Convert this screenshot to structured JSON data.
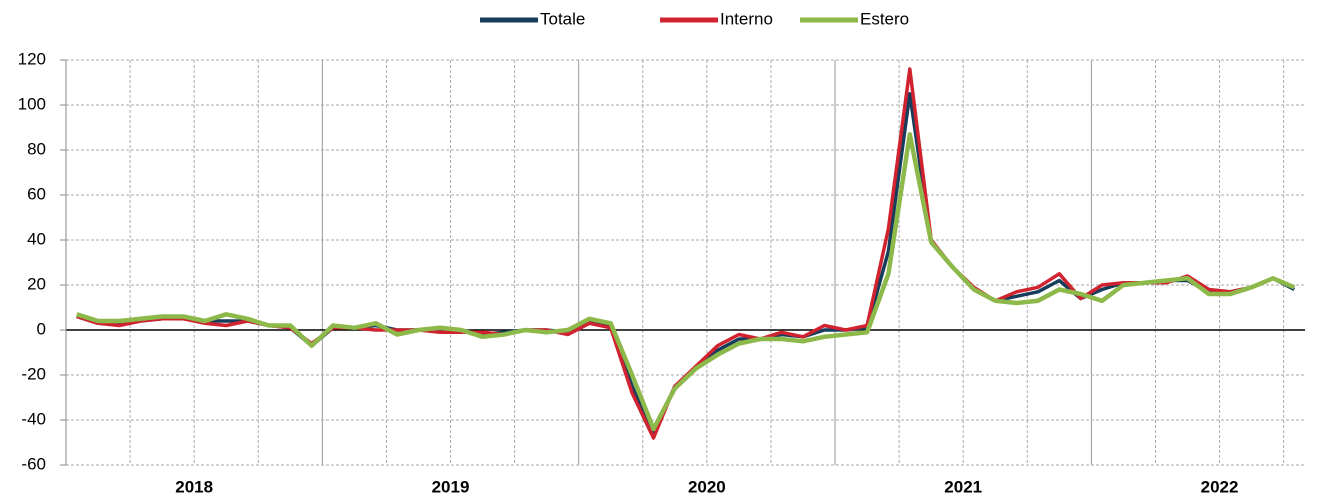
{
  "chart_data": {
    "type": "line",
    "categories": [
      null,
      null,
      null,
      null,
      null,
      null,
      "2018",
      null,
      null,
      null,
      null,
      null,
      null,
      null,
      null,
      null,
      null,
      null,
      "2019",
      null,
      null,
      null,
      null,
      null,
      null,
      null,
      null,
      null,
      null,
      null,
      "2020",
      null,
      null,
      null,
      null,
      null,
      null,
      null,
      null,
      null,
      null,
      null,
      "2021",
      null,
      null,
      null,
      null,
      null,
      null,
      null,
      null,
      null,
      null,
      null,
      "2022",
      null,
      null,
      null
    ],
    "series": [
      {
        "name": "Totale",
        "color": "#163d5c",
        "values": [
          6,
          3,
          3,
          4,
          5,
          5,
          4,
          4,
          4,
          2,
          1,
          -7,
          1,
          1,
          2,
          0,
          0,
          0,
          0,
          -2,
          -1,
          0,
          0,
          -1,
          4,
          2,
          -25,
          -46,
          -25,
          -17,
          -9,
          -4,
          -4,
          -2,
          -3,
          0,
          0,
          1,
          35,
          105,
          39,
          28,
          18,
          13,
          15,
          17,
          22,
          14,
          18,
          21,
          21,
          22,
          22,
          17,
          17,
          19,
          23,
          18
        ]
      },
      {
        "name": "Interno",
        "color": "#d0232f",
        "values": [
          6,
          3,
          2,
          4,
          5,
          5,
          3,
          2,
          4,
          2,
          1,
          -6,
          1,
          1,
          0,
          0,
          0,
          -1,
          -1,
          -1,
          -2,
          0,
          0,
          -2,
          3,
          1,
          -28,
          -48,
          -25,
          -16,
          -7,
          -2,
          -4,
          -1,
          -3,
          2,
          0,
          2,
          45,
          116,
          40,
          28,
          19,
          13,
          17,
          19,
          25,
          14,
          20,
          21,
          21,
          21,
          24,
          18,
          17,
          19,
          23,
          19
        ]
      },
      {
        "name": "Estero",
        "color": "#8db84a",
        "values": [
          7,
          4,
          4,
          5,
          6,
          6,
          4,
          7,
          5,
          2,
          2,
          -7,
          2,
          1,
          3,
          -2,
          0,
          1,
          0,
          -3,
          -2,
          0,
          -1,
          0,
          5,
          3,
          -20,
          -44,
          -26,
          -17,
          -11,
          -6,
          -4,
          -4,
          -5,
          -3,
          -2,
          -1,
          25,
          87,
          39,
          28,
          18,
          13,
          12,
          13,
          18,
          16,
          13,
          20,
          21,
          22,
          23,
          16,
          16,
          19,
          23,
          19
        ]
      }
    ],
    "ylim": [
      -60,
      120
    ],
    "yticks": [
      -60,
      -40,
      -20,
      0,
      20,
      40,
      60,
      80,
      100,
      120
    ],
    "grid": true
  }
}
